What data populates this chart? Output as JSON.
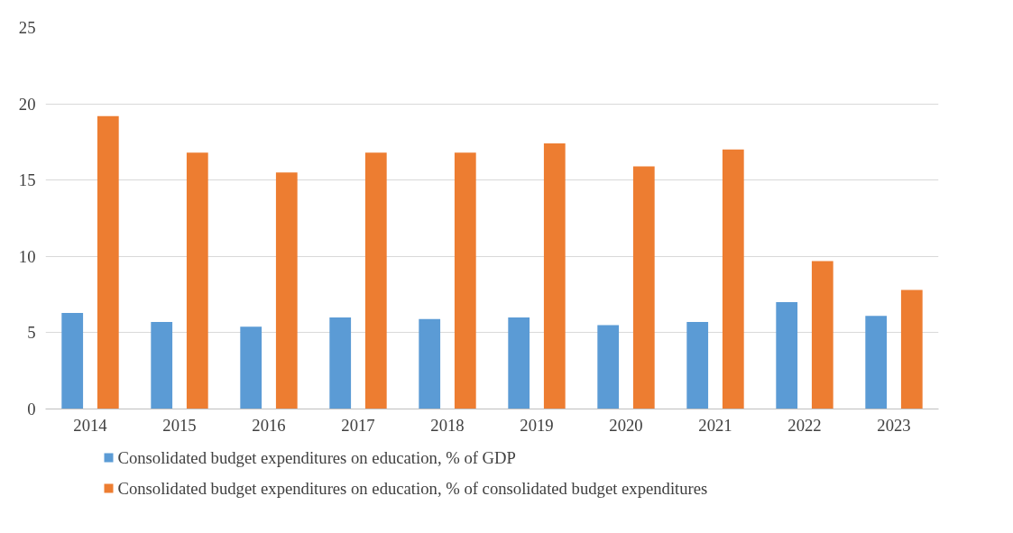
{
  "chart_data": {
    "type": "bar",
    "categories": [
      "2014",
      "2015",
      "2016",
      "2017",
      "2018",
      "2019",
      "2020",
      "2021",
      "2022",
      "2023"
    ],
    "series": [
      {
        "name": "Consolidated budget expenditures on education, % of GDP",
        "color": "#5b9bd5",
        "values": [
          6.3,
          5.7,
          5.4,
          6.0,
          5.9,
          6.0,
          5.5,
          5.7,
          7.0,
          6.1
        ]
      },
      {
        "name": "Consolidated budget expenditures on education, % of consolidated budget expenditures",
        "color": "#ed7d31",
        "values": [
          19.2,
          16.8,
          15.5,
          16.8,
          16.8,
          17.4,
          15.9,
          17.0,
          9.7,
          7.8
        ]
      }
    ],
    "ylim": [
      0,
      25
    ],
    "yticks": [
      0,
      5,
      10,
      15,
      20,
      25
    ],
    "grid": "y",
    "legend": "bottom"
  }
}
